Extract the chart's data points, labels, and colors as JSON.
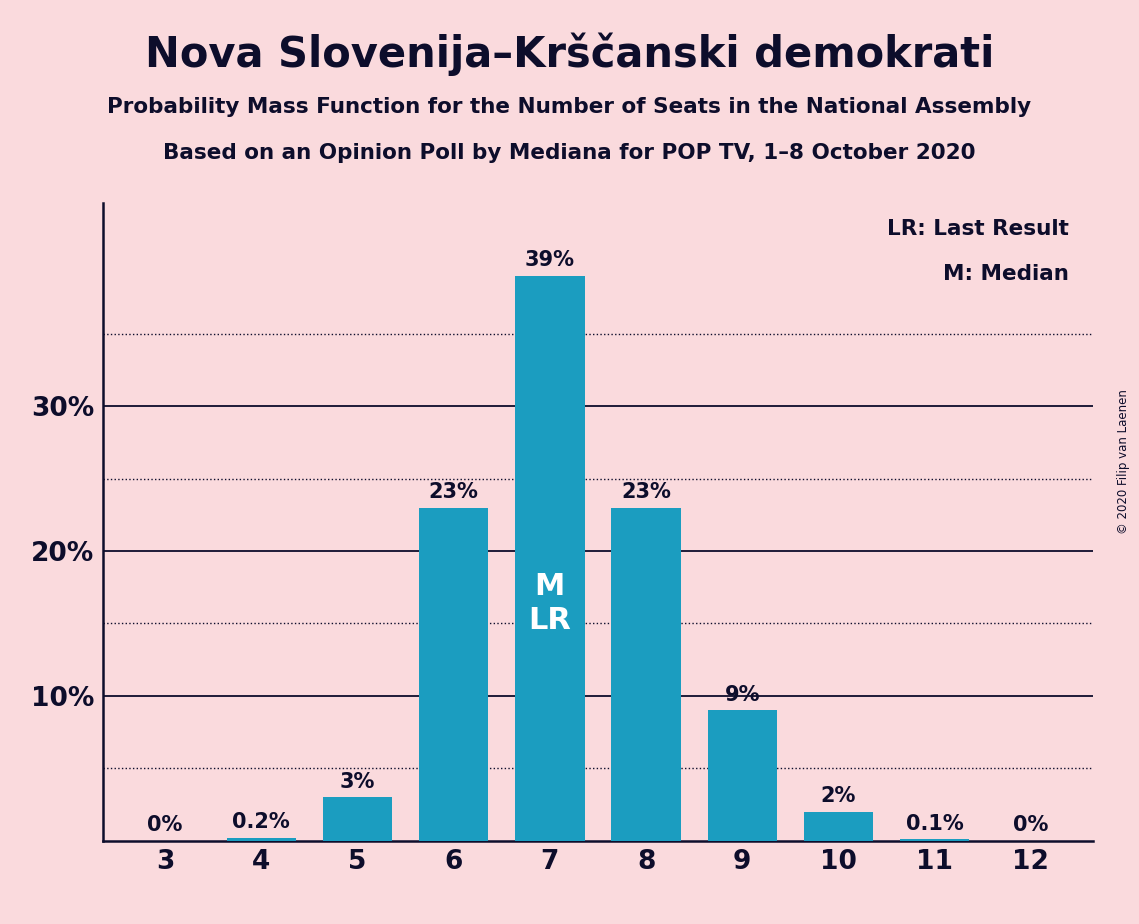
{
  "title": "Nova Slovenija–Krščanski demokrati",
  "subtitle1": "Probability Mass Function for the Number of Seats in the National Assembly",
  "subtitle2": "Based on an Opinion Poll by Mediana for POP TV, 1–8 October 2020",
  "copyright": "© 2020 Filip van Laenen",
  "seats": [
    3,
    4,
    5,
    6,
    7,
    8,
    9,
    10,
    11,
    12
  ],
  "values": [
    0.0,
    0.2,
    3.0,
    23.0,
    39.0,
    23.0,
    9.0,
    2.0,
    0.1,
    0.0
  ],
  "bar_color": "#1B9DC0",
  "background_color": "#FADADD",
  "bar_labels": [
    "0%",
    "0.2%",
    "3%",
    "23%",
    "39%",
    "23%",
    "9%",
    "2%",
    "0.1%",
    "0%"
  ],
  "median_seat": 7,
  "last_result_seat": 7,
  "yticks": [
    10,
    20,
    30
  ],
  "ytick_labels": [
    "10%",
    "20%",
    "30%"
  ],
  "grid_solid": [
    10,
    20,
    30
  ],
  "grid_dotted": [
    5,
    15,
    25,
    35
  ],
  "legend_lr": "LR: Last Result",
  "legend_m": "M: Median",
  "text_dark": "#0D0D2B",
  "text_white": "#FFFFFF",
  "bar_width": 0.72,
  "ylim_max": 44,
  "figsize": [
    11.39,
    9.24
  ],
  "dpi": 100
}
